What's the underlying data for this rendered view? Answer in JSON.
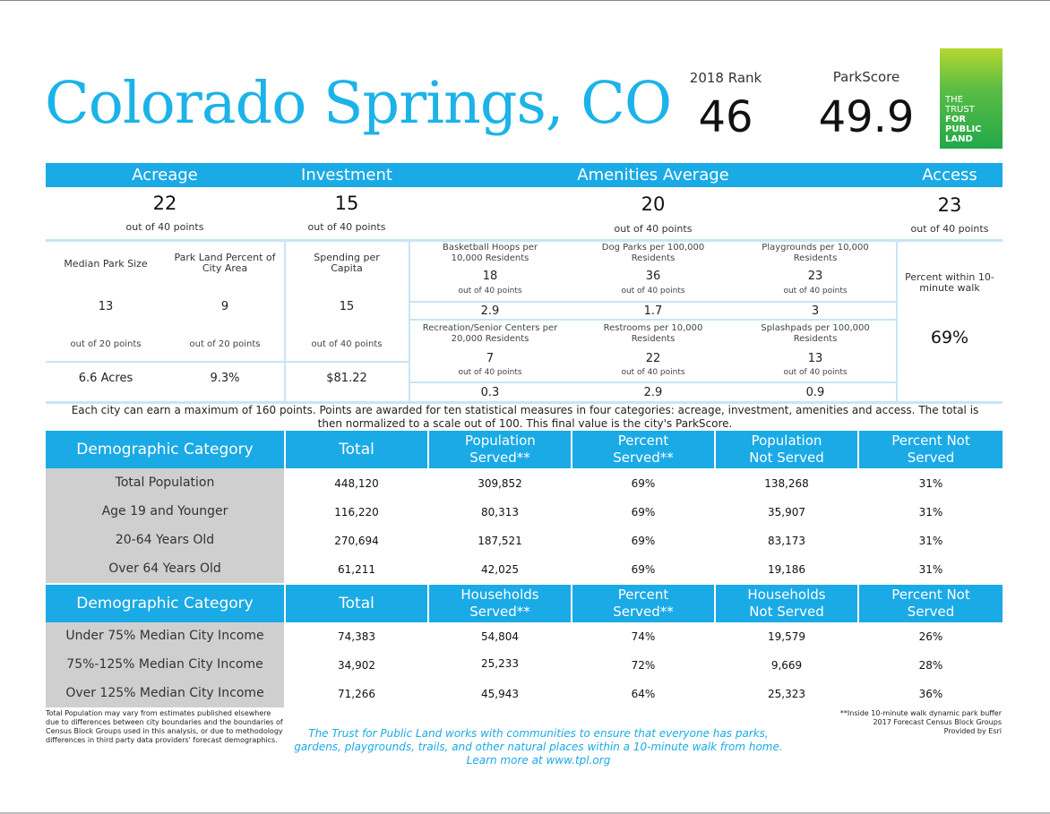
{
  "header": {
    "city": "Colorado Springs, CO",
    "rank_label": "2018 Rank",
    "rank_value": "46",
    "score_label": "ParkScore",
    "score_value": "49.9",
    "logo_lines": [
      "THE",
      "TRUST",
      "FOR",
      "PUBLIC",
      "LAND"
    ]
  },
  "categories": [
    {
      "name": "Acreage",
      "score": "22",
      "sub": "out of 40 points"
    },
    {
      "name": "Investment",
      "score": "15",
      "sub": "out of 40 points"
    },
    {
      "name": "Amenities Average",
      "score": "20",
      "sub": "out of 40 points"
    },
    {
      "name": "Access",
      "score": "23",
      "sub": "out of 40 points"
    }
  ],
  "acreage": [
    {
      "label": "Median Park Size",
      "points": "13",
      "out_of": "out of 20 points",
      "value": "6.6 Acres"
    },
    {
      "label": "Park Land Percent of City Area",
      "points": "9",
      "out_of": "out of 20 points",
      "value": "9.3%"
    }
  ],
  "investment": {
    "label": "Spending per Capita",
    "points": "15",
    "out_of": "out of 40 points",
    "value": "$81.22"
  },
  "amenities": [
    {
      "label": "Basketball Hoops per 10,000 Residents",
      "points": "18",
      "out_of": "out of 40 points",
      "value": "2.9"
    },
    {
      "label": "Dog Parks per 100,000 Residents",
      "points": "36",
      "out_of": "out of 40 points",
      "value": "1.7"
    },
    {
      "label": "Playgrounds per 10,000 Residents",
      "points": "23",
      "out_of": "out of 40 points",
      "value": "3"
    },
    {
      "label": "Recreation/Senior Centers per 20,000 Residents",
      "points": "7",
      "out_of": "out of 40 points",
      "value": "0.3"
    },
    {
      "label": "Restrooms per 10,000 Residents",
      "points": "22",
      "out_of": "out of 40 points",
      "value": "2.9"
    },
    {
      "label": "Splashpads per 100,000 Residents",
      "points": "13",
      "out_of": "out of 40 points",
      "value": "0.9"
    }
  ],
  "access": {
    "label": "Percent within 10-minute walk",
    "value": "69%"
  },
  "note": "Each city can earn a maximum of 160 points. Points are awarded for ten statistical measures in four categories: acreage, investment, amenities and access. The total is then normalized to a scale out of 100. This final value is the city's ParkScore.",
  "population_table": {
    "headers": [
      "Demographic Category",
      "Total",
      "Population Served**",
      "Percent Served**",
      "Population Not Served",
      "Percent Not Served"
    ],
    "rows": [
      [
        "Total Population",
        "448,120",
        "309,852",
        "69%",
        "138,268",
        "31%"
      ],
      [
        "Age 19 and Younger",
        "116,220",
        "80,313",
        "69%",
        "35,907",
        "31%"
      ],
      [
        "20-64 Years Old",
        "270,694",
        "187,521",
        "69%",
        "83,173",
        "31%"
      ],
      [
        "Over 64 Years Old",
        "61,211",
        "42,025",
        "69%",
        "19,186",
        "31%"
      ]
    ]
  },
  "household_table": {
    "headers": [
      "Demographic Category",
      "Total",
      "Households Served**",
      "Percent Served**",
      "Households Not Served",
      "Percent Not Served"
    ],
    "rows": [
      [
        "Under 75% Median City Income",
        "74,383",
        "54,804",
        "74%",
        "19,579",
        "26%"
      ],
      [
        "75%-125% Median City Income",
        "34,902",
        "25,233",
        "72%",
        "9,669",
        "28%"
      ],
      [
        "Over 125% Median City Income",
        "71,266",
        "45,943",
        "64%",
        "25,323",
        "36%"
      ]
    ]
  },
  "footer": {
    "left": "Total Population may vary from estimates published elsewhere due to differences between city boundaries and the boundaries of Census Block Groups used in this analysis, or due to methodology differences in third party data providers' forecast demographics.",
    "middle": "The Trust for Public Land works with communities to ensure that everyone has parks, gardens, playgrounds, trails, and other natural places within a 10-minute walk from home. Learn more at www.tpl.org",
    "right_lines": [
      "**Inside 10-minute walk dynamic park buffer",
      "2017 Forecast Census Block Groups",
      "Provided by Esri"
    ]
  }
}
